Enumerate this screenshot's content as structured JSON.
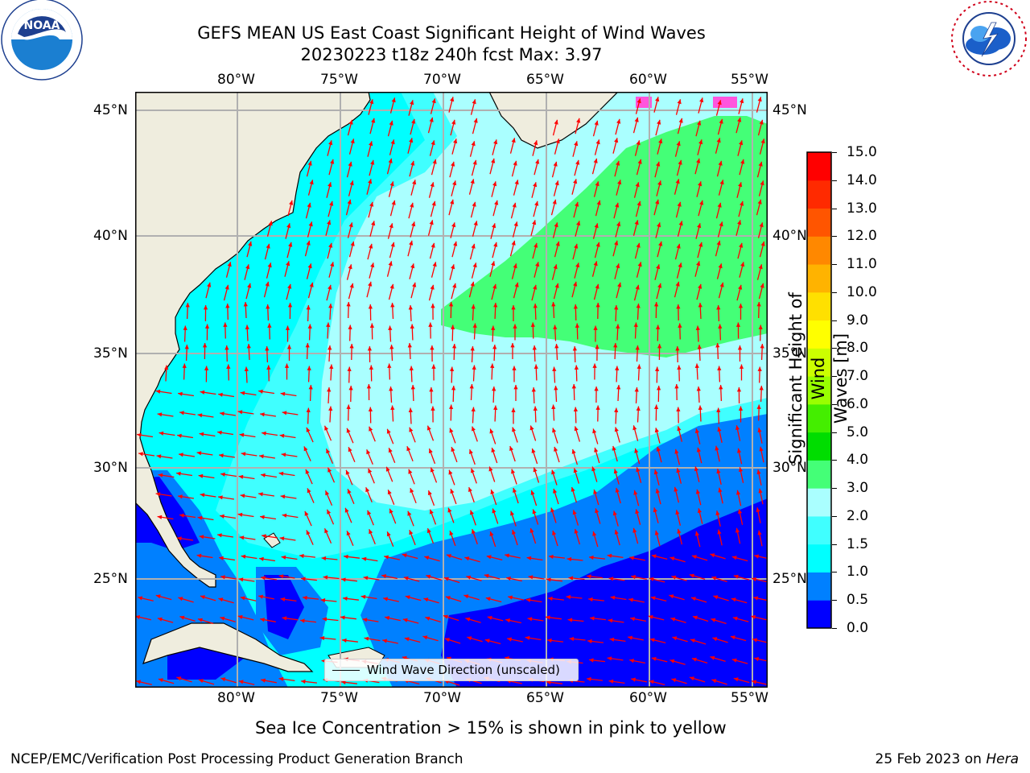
{
  "title": {
    "line1": "GEFS MEAN US East Coast Significant Height of Wind Waves",
    "line2": "20230223 t18z 240h fcst   Max: 3.97"
  },
  "logos": {
    "noaa": {
      "badge_text": "NOAA",
      "ring_text": "NATIONAL OCEANIC AND ATMOSPHERIC ADMINISTRATION · U.S. DEPARTMENT OF COMMERCE"
    },
    "nws": {
      "ring_text": "NATIONAL WEATHER SERVICE"
    }
  },
  "map": {
    "lon_ticks": [
      "80°W",
      "75°W",
      "70°W",
      "65°W",
      "60°W",
      "55°W"
    ],
    "lat_ticks": [
      "45°N",
      "40°N",
      "35°N",
      "30°N",
      "25°N"
    ],
    "legend_label": "Wind Wave Direction (unscaled)",
    "colors": {
      "land": "#efedde",
      "arrows": "#ff0000",
      "grid": "#b0b0b0",
      "coast": "#000000"
    }
  },
  "colorbar": {
    "label_line1": "Significant Height of Wind",
    "label_line2": "Waves [m]",
    "ticks": [
      "0.0",
      "0.5",
      "1.0",
      "1.5",
      "2.0",
      "3.0",
      "4.0",
      "5.0",
      "6.0",
      "7.0",
      "8.0",
      "9.0",
      "10.0",
      "11.0",
      "12.0",
      "13.0",
      "14.0",
      "15.0"
    ],
    "colors": [
      "#0000ff",
      "#0080ff",
      "#00ffff",
      "#40ffff",
      "#aaffff",
      "#44ff77",
      "#00dd00",
      "#44ee00",
      "#99ff00",
      "#ccff00",
      "#ffff00",
      "#ffe000",
      "#ffb300",
      "#ff8800",
      "#ff5500",
      "#ff2a00",
      "#ff0000"
    ]
  },
  "note": "Sea Ice Concentration > 15% is shown in pink to yellow",
  "footer": {
    "left": "NCEP/EMC/Verification Post Processing Product Generation Branch",
    "right_prefix": "25 Feb 2023 on ",
    "right_machine": "Hera"
  }
}
